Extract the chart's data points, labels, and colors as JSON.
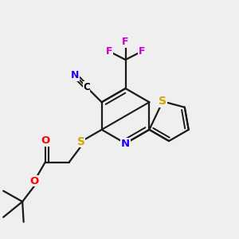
{
  "bg_color": "#efefef",
  "bond_color": "#1a1a1a",
  "label_colors": {
    "N": "#1a00ff",
    "S": "#ccaa00",
    "O": "#ff0000",
    "F": "#cc00cc",
    "C": "#000000"
  },
  "figsize": [
    3.0,
    3.0
  ],
  "dpi": 100,
  "xlim": [
    0.0,
    1.0
  ],
  "ylim": [
    0.0,
    1.0
  ]
}
